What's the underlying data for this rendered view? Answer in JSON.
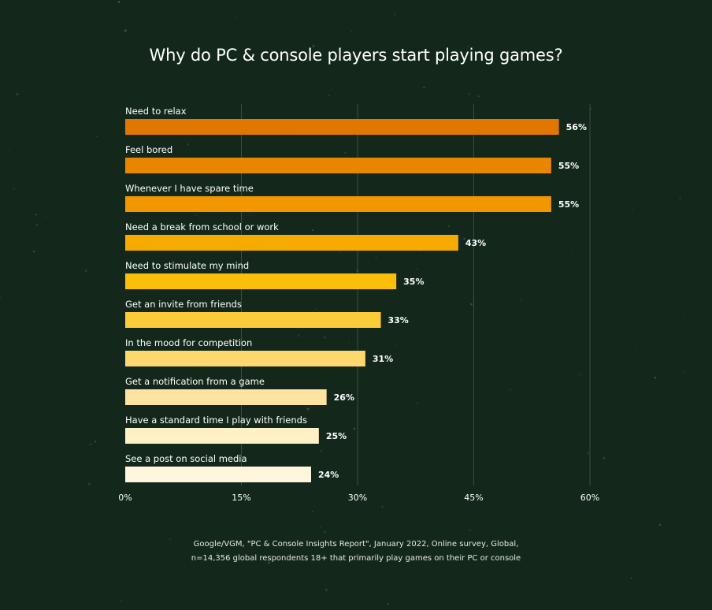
{
  "chart_data": {
    "type": "bar",
    "orientation": "horizontal",
    "title": "Why do PC & console players start playing games?",
    "categories": [
      "Need to relax",
      "Feel bored",
      "Whenever I have spare time",
      "Need a break from school or work",
      "Need to stimulate my mind",
      "Get an invite from friends",
      "In the mood for competition",
      "Get a notification from a game",
      "Have a standard time I play with friends",
      "See a post on social media"
    ],
    "values": [
      56,
      55,
      55,
      43,
      35,
      33,
      31,
      26,
      25,
      24
    ],
    "value_labels": [
      "56%",
      "55%",
      "55%",
      "43%",
      "35%",
      "33%",
      "31%",
      "26%",
      "25%",
      "24%"
    ],
    "bar_colors": [
      "#e07700",
      "#ea8500",
      "#f29700",
      "#f7ab00",
      "#fbbf0a",
      "#fccb3a",
      "#fdd86e",
      "#fee3a0",
      "#fff0c6",
      "#fff6de"
    ],
    "xlim": [
      0,
      60
    ],
    "xticks": [
      0,
      15,
      30,
      45,
      60
    ],
    "xtick_labels": [
      "0%",
      "15%",
      "30%",
      "45%",
      "60%"
    ],
    "grid": "vertical",
    "xlabel": "",
    "ylabel": ""
  },
  "footnote": {
    "line1": "Google/VGM, \"PC & Console Insights Report\", January 2022, Online survey, Global,",
    "line2": "n=14,356 global respondents 18+ that primarily play games on their PC or console"
  },
  "colors": {
    "background": "#13281b",
    "gridline": "#3b4d40",
    "text": "#ffffff"
  }
}
